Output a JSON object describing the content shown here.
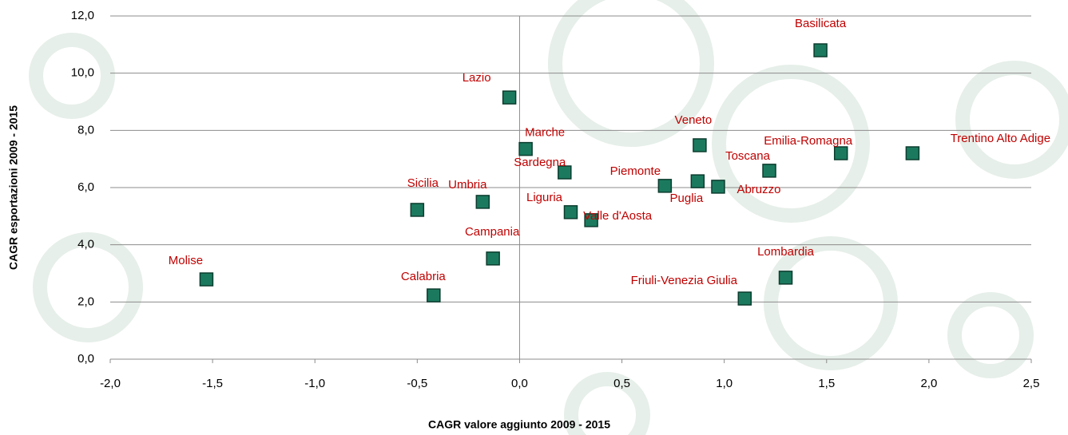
{
  "chart_data": {
    "type": "scatter",
    "xlabel": "CAGR valore aggiunto 2009 - 2015",
    "ylabel": "CAGR esportazioni 2009 - 2015",
    "point_labels": [
      "Basilicata",
      "Lazio",
      "Marche",
      "Sardegna",
      "Veneto",
      "Emilia-Romagna",
      "Trentino Alto Adige",
      "Toscana",
      "Piemonte",
      "Puglia",
      "Abruzzo",
      "Sicilia",
      "Umbria",
      "Liguria",
      "Valle d'Aosta",
      "Campania",
      "Calabria",
      "Molise",
      "Lombardia",
      "Friuli-Venezia Giulia"
    ],
    "x": [
      1.47,
      -0.05,
      0.03,
      0.22,
      0.88,
      1.57,
      1.92,
      1.22,
      0.71,
      0.87,
      0.97,
      -0.5,
      -0.18,
      0.25,
      0.35,
      -0.13,
      -0.42,
      -1.53,
      1.3,
      1.1
    ],
    "values": [
      10.8,
      9.15,
      7.35,
      6.53,
      7.48,
      7.2,
      7.2,
      6.59,
      6.06,
      6.22,
      6.03,
      5.22,
      5.5,
      5.14,
      4.86,
      3.52,
      2.23,
      2.79,
      2.85,
      2.12
    ],
    "color": "#1b7a5e",
    "xlim": [
      -2.0,
      2.5
    ],
    "xticks": [
      {
        "value": -2.0,
        "label": "-2,0"
      },
      {
        "value": -1.5,
        "label": "-1,5"
      },
      {
        "value": -1.0,
        "label": "-1,0"
      },
      {
        "value": -0.5,
        "label": "-0,5"
      },
      {
        "value": 0.0,
        "label": "0,0"
      },
      {
        "value": 0.5,
        "label": "0,5"
      },
      {
        "value": 1.0,
        "label": "1,0"
      },
      {
        "value": 1.5,
        "label": "1,5"
      },
      {
        "value": 2.0,
        "label": "2,0"
      },
      {
        "value": 2.5,
        "label": "2,5"
      }
    ],
    "ylim": [
      0.0,
      12.0
    ],
    "yticks": [
      {
        "value": 0.0,
        "label": "0,0"
      },
      {
        "value": 2.0,
        "label": "2,0"
      },
      {
        "value": 4.0,
        "label": "4,0"
      },
      {
        "value": 6.0,
        "label": "6,0"
      },
      {
        "value": 8.0,
        "label": "8,0"
      },
      {
        "value": 10.0,
        "label": "10,0"
      },
      {
        "value": 12.0,
        "label": "12,0"
      }
    ],
    "grid": true
  }
}
